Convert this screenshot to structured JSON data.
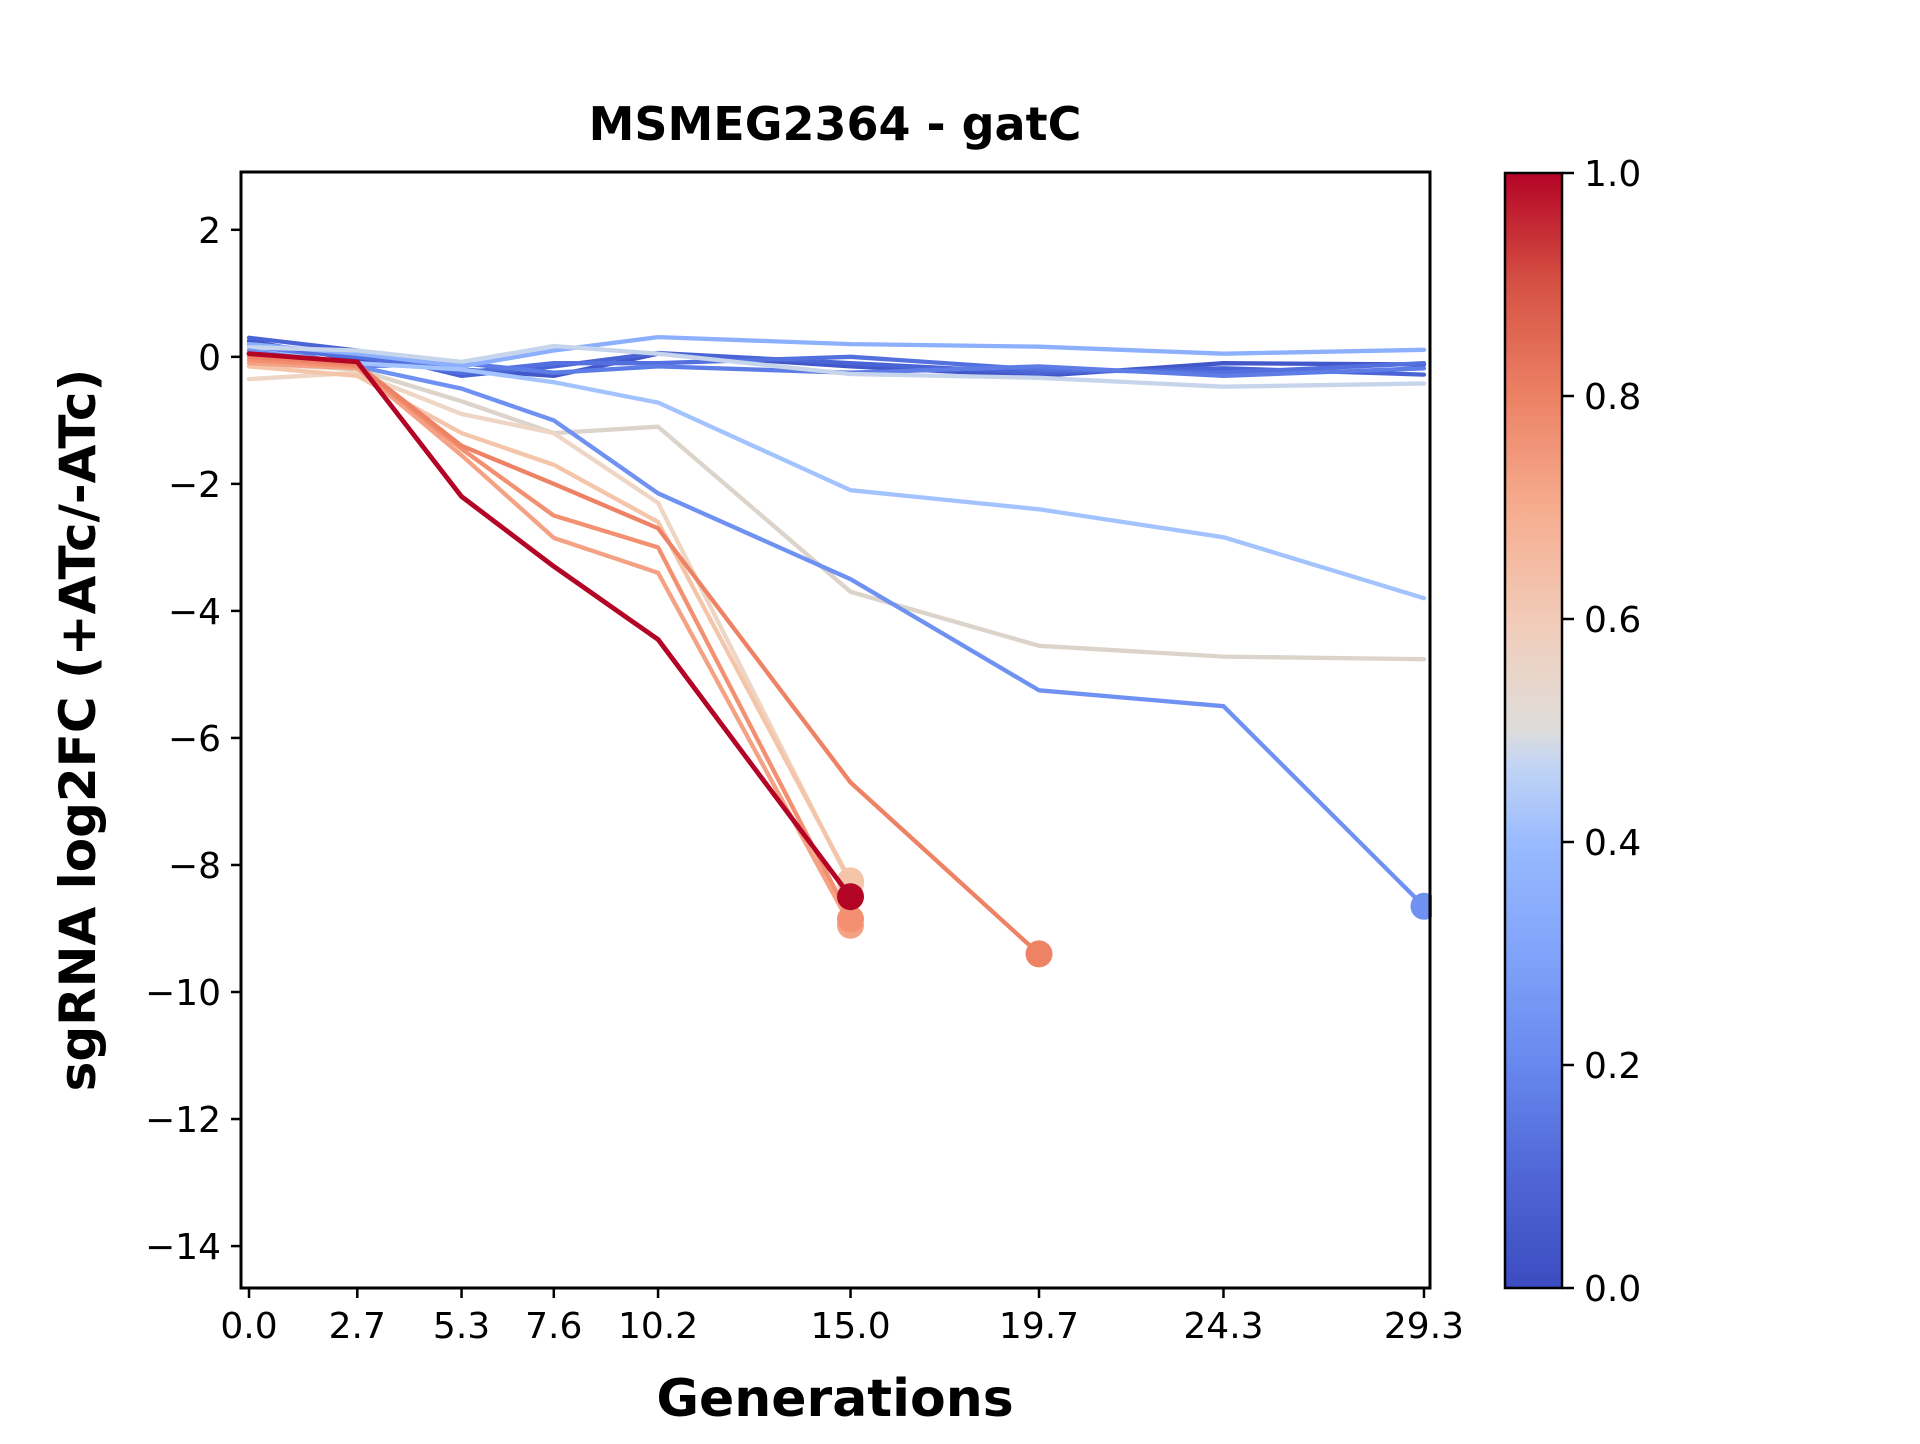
{
  "chart_data": {
    "type": "line",
    "title": "MSMEG2364 - gatC",
    "xlabel": "Generations",
    "ylabel": "sgRNA log2FC (+ATc/-ATc)",
    "xlim": [
      -0.2,
      29.45
    ],
    "ylim": [
      -14.66,
      2.91
    ],
    "grid": false,
    "legend": "none",
    "background": "#ffffff",
    "axis_color": "#000000",
    "x_ticks": {
      "values": [
        0.0,
        2.7,
        5.3,
        7.6,
        10.2,
        15.0,
        19.7,
        24.3,
        29.3
      ],
      "labels": [
        "0.0",
        "2.7",
        "5.3",
        "7.6",
        "10.2",
        "15.0",
        "19.7",
        "24.3",
        "29.3"
      ]
    },
    "y_ticks": {
      "values": [
        2,
        0,
        -2,
        -4,
        -6,
        -8,
        -10,
        -12,
        -14
      ],
      "labels": [
        "2",
        "0",
        "−2",
        "−4",
        "−6",
        "−8",
        "−10",
        "−12",
        "−14"
      ]
    },
    "colorbar": {
      "colormap": "coolwarm",
      "orientation": "vertical",
      "ticks": {
        "values": [
          1.0,
          0.8,
          0.6,
          0.4,
          0.2,
          0.0
        ],
        "labels": [
          "1.0",
          "0.8",
          "0.6",
          "0.4",
          "0.2",
          "0.0"
        ]
      },
      "gradient_stops": [
        {
          "t": 0.0,
          "color": "#3b4cc0"
        },
        {
          "t": 0.1,
          "color": "#5066d6"
        },
        {
          "t": 0.2,
          "color": "#6788ee"
        },
        {
          "t": 0.3,
          "color": "#80a3fa"
        },
        {
          "t": 0.4,
          "color": "#9abbff"
        },
        {
          "t": 0.47,
          "color": "#c3d5f4"
        },
        {
          "t": 0.5,
          "color": "#dddcdb"
        },
        {
          "t": 0.55,
          "color": "#e9d5c9"
        },
        {
          "t": 0.6,
          "color": "#f2cbb8"
        },
        {
          "t": 0.7,
          "color": "#f6ac8e"
        },
        {
          "t": 0.8,
          "color": "#ec8165"
        },
        {
          "t": 0.9,
          "color": "#d65244"
        },
        {
          "t": 1.0,
          "color": "#b40426"
        }
      ]
    },
    "series": [
      {
        "color_value": 0.05,
        "color": "#4157ca",
        "line_width": 4.3,
        "marker_end": false,
        "x": [
          0,
          2.7,
          5.3,
          7.6,
          10.2,
          15.0,
          19.7,
          24.3,
          29.3
        ],
        "y": [
          0.25,
          -0.05,
          -0.2,
          -0.3,
          0.05,
          -0.15,
          -0.3,
          -0.1,
          -0.12
        ]
      },
      {
        "color_value": 0.1,
        "color": "#4b64d5",
        "line_width": 4.3,
        "marker_end": false,
        "x": [
          0,
          2.7,
          5.3,
          7.6,
          10.2,
          15.0,
          19.7,
          24.3,
          29.3
        ],
        "y": [
          0.3,
          0.1,
          -0.3,
          -0.15,
          0.06,
          -0.1,
          -0.25,
          -0.18,
          -0.28
        ]
      },
      {
        "color_value": 0.15,
        "color": "#5470de",
        "line_width": 4.3,
        "marker_end": false,
        "x": [
          0,
          2.7,
          5.3,
          7.6,
          10.2,
          15.0,
          19.7,
          24.3,
          29.3
        ],
        "y": [
          0.15,
          0.0,
          -0.25,
          -0.1,
          -0.1,
          0.0,
          -0.2,
          -0.25,
          -0.1
        ]
      },
      {
        "color_value": 0.2,
        "color": "#5d7ce6",
        "line_width": 4.3,
        "marker_end": false,
        "x": [
          0,
          2.7,
          5.3,
          7.6,
          10.2,
          15.0,
          19.7,
          24.3,
          29.3
        ],
        "y": [
          0.2,
          -0.15,
          -0.1,
          -0.25,
          -0.15,
          -0.25,
          -0.15,
          -0.3,
          -0.18
        ]
      },
      {
        "color_value": 0.33,
        "color": "#8db0fe",
        "line_width": 4.3,
        "marker_end": false,
        "x": [
          0,
          2.7,
          5.3,
          7.6,
          10.2,
          15.0,
          19.7,
          24.3,
          29.3
        ],
        "y": [
          0.2,
          0.05,
          -0.15,
          0.1,
          0.31,
          0.2,
          0.16,
          0.05,
          0.11
        ]
      },
      {
        "color_value": 0.37,
        "color": "#a3c3fe",
        "line_width": 4.3,
        "marker_end": false,
        "x": [
          0,
          2.7,
          5.3,
          7.6,
          10.2,
          15.0,
          19.7,
          24.3,
          29.3
        ],
        "y": [
          0.1,
          -0.1,
          -0.2,
          -0.4,
          -0.72,
          -2.1,
          -2.4,
          -2.84,
          -3.8
        ]
      },
      {
        "color_value": 0.45,
        "color": "#c7d5ec",
        "line_width": 4.3,
        "marker_end": false,
        "x": [
          0,
          2.7,
          5.3,
          7.6,
          10.2,
          15.0,
          19.7,
          24.3,
          29.3
        ],
        "y": [
          0.15,
          0.1,
          -0.08,
          0.17,
          0.05,
          -0.27,
          -0.33,
          -0.47,
          -0.42
        ]
      },
      {
        "color_value": 0.53,
        "color": "#dcd3ca",
        "line_width": 4.3,
        "marker_end": false,
        "x": [
          0,
          2.7,
          5.3,
          7.6,
          10.2,
          15.0,
          19.7,
          24.3,
          29.3
        ],
        "y": [
          -0.1,
          -0.2,
          -0.7,
          -1.2,
          -1.1,
          -3.7,
          -4.55,
          -4.72,
          -4.76
        ]
      },
      {
        "color_value": 0.27,
        "color": "#6e91f2",
        "line_width": 4.3,
        "marker_end": true,
        "x": [
          0,
          2.7,
          5.3,
          7.6,
          10.2,
          15.0,
          19.7,
          24.3,
          29.3
        ],
        "y": [
          0.1,
          -0.15,
          -0.5,
          -1.0,
          -2.15,
          -3.5,
          -5.25,
          -5.5,
          -8.65
        ]
      },
      {
        "color_value": 0.58,
        "color": "#eed5c4",
        "line_width": 4.3,
        "marker_end": true,
        "x": [
          0,
          2.7,
          5.3,
          7.6,
          10.2,
          15.0
        ],
        "y": [
          -0.35,
          -0.25,
          -0.9,
          -1.2,
          -2.3,
          -8.3
        ]
      },
      {
        "color_value": 0.63,
        "color": "#f4c5a9",
        "line_width": 4.3,
        "marker_end": true,
        "x": [
          0,
          2.7,
          5.3,
          7.6,
          10.2,
          15.0
        ],
        "y": [
          -0.15,
          -0.3,
          -1.2,
          -1.7,
          -2.6,
          -8.25
        ]
      },
      {
        "color_value": 0.72,
        "color": "#f5a284",
        "line_width": 4.3,
        "marker_end": true,
        "x": [
          0,
          2.7,
          5.3,
          7.6,
          10.2,
          15.0
        ],
        "y": [
          -0.1,
          -0.18,
          -1.55,
          -2.85,
          -3.4,
          -8.95
        ]
      },
      {
        "color_value": 0.76,
        "color": "#f29071",
        "line_width": 4.3,
        "marker_end": true,
        "x": [
          0,
          2.7,
          5.3,
          7.6,
          10.2,
          15.0
        ],
        "y": [
          -0.05,
          -0.15,
          -1.45,
          -2.5,
          -3.0,
          -8.85
        ]
      },
      {
        "color_value": 0.8,
        "color": "#ee8265",
        "line_width": 4.3,
        "marker_end": true,
        "x": [
          0,
          2.7,
          5.3,
          7.6,
          10.2,
          15.0,
          19.7
        ],
        "y": [
          0.0,
          -0.12,
          -1.4,
          -2.0,
          -2.7,
          -6.7,
          -9.4
        ]
      },
      {
        "color_value": 1.0,
        "color": "#b40426",
        "line_width": 4.8,
        "marker_end": true,
        "x": [
          0,
          2.7,
          5.3,
          7.6,
          10.2,
          15.0
        ],
        "y": [
          0.05,
          -0.08,
          -2.2,
          -3.3,
          -4.45,
          -8.5
        ]
      }
    ]
  }
}
